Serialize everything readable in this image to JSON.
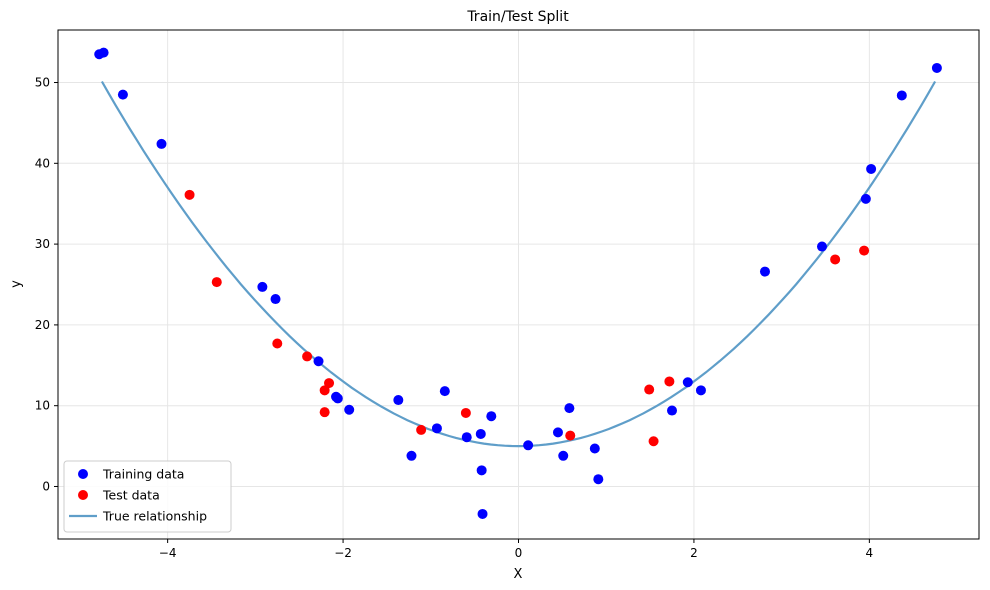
{
  "chart_data": {
    "type": "scatter",
    "title": "Train/Test Split",
    "xlabel": "X",
    "ylabel": "y",
    "xlim": [
      -5.25,
      5.25
    ],
    "ylim": [
      -6.5,
      56.5
    ],
    "xticks": [
      -4,
      -2,
      0,
      2,
      4
    ],
    "yticks": [
      0,
      10,
      20,
      30,
      40,
      50
    ],
    "xtick_labels": [
      "−4",
      "−2",
      "0",
      "2",
      "4"
    ],
    "ytick_labels": [
      "0",
      "10",
      "20",
      "30",
      "40",
      "50"
    ],
    "grid": true,
    "legend_position": "lower-left",
    "series": [
      {
        "name": "Training data",
        "kind": "scatter",
        "color": "#0000ff",
        "points": [
          [
            -4.78,
            53.5
          ],
          [
            -4.73,
            53.7
          ],
          [
            -4.51,
            48.5
          ],
          [
            -4.07,
            42.4
          ],
          [
            -2.92,
            24.7
          ],
          [
            -2.77,
            23.2
          ],
          [
            -2.28,
            15.5
          ],
          [
            -2.08,
            11.1
          ],
          [
            -2.06,
            10.9
          ],
          [
            -1.93,
            9.5
          ],
          [
            -1.37,
            10.7
          ],
          [
            -1.22,
            3.8
          ],
          [
            -0.93,
            7.2
          ],
          [
            -0.84,
            11.8
          ],
          [
            -0.59,
            6.1
          ],
          [
            -0.43,
            6.5
          ],
          [
            -0.42,
            2.0
          ],
          [
            -0.41,
            -3.4
          ],
          [
            -0.31,
            8.7
          ],
          [
            0.11,
            5.1
          ],
          [
            0.45,
            6.7
          ],
          [
            0.51,
            3.8
          ],
          [
            0.58,
            9.7
          ],
          [
            0.87,
            4.7
          ],
          [
            0.91,
            0.9
          ],
          [
            1.75,
            9.4
          ],
          [
            1.93,
            12.9
          ],
          [
            2.08,
            11.9
          ],
          [
            2.81,
            26.6
          ],
          [
            3.46,
            29.7
          ],
          [
            3.96,
            35.6
          ],
          [
            4.02,
            39.3
          ],
          [
            4.37,
            48.4
          ],
          [
            4.77,
            51.8
          ]
        ]
      },
      {
        "name": "Test data",
        "kind": "scatter",
        "color": "#ff0000",
        "points": [
          [
            -3.75,
            36.1
          ],
          [
            -3.44,
            25.3
          ],
          [
            -2.75,
            17.7
          ],
          [
            -2.41,
            16.1
          ],
          [
            -2.21,
            11.9
          ],
          [
            -2.16,
            12.8
          ],
          [
            -2.21,
            9.2
          ],
          [
            -1.11,
            7.0
          ],
          [
            -0.6,
            9.1
          ],
          [
            0.59,
            6.3
          ],
          [
            1.49,
            12.0
          ],
          [
            1.54,
            5.6
          ],
          [
            1.72,
            13.0
          ],
          [
            3.61,
            28.1
          ],
          [
            3.94,
            29.2
          ]
        ]
      },
      {
        "name": "True relationship",
        "kind": "line",
        "color": "#5f9ec9",
        "function": "2*x^2 + 5",
        "x_range": [
          -4.75,
          4.75
        ]
      }
    ]
  }
}
